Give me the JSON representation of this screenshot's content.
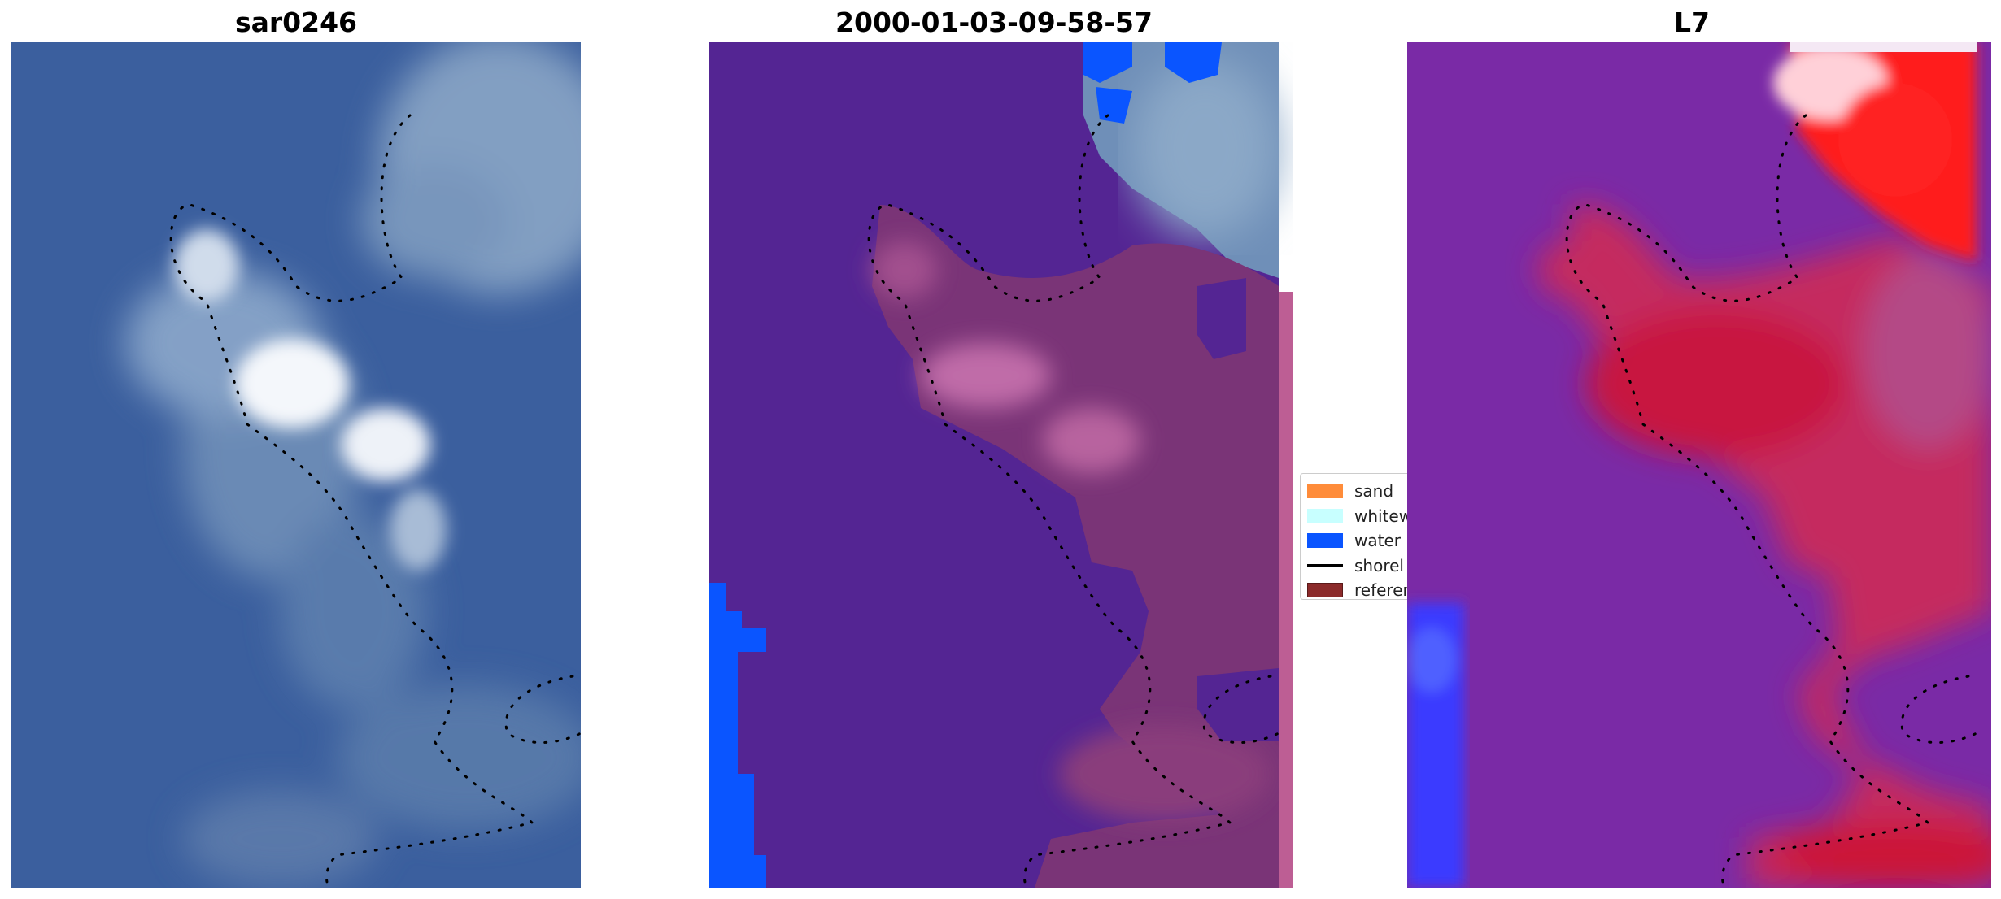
{
  "panels": [
    {
      "title": "sar0246"
    },
    {
      "title": "2000-01-03-09-58-57"
    },
    {
      "title": "L7"
    }
  ],
  "legend": {
    "items": [
      {
        "label": "sand",
        "type": "patch",
        "color": "#ff8c3a"
      },
      {
        "label": "whitew",
        "type": "patch",
        "color": "#c8ffff"
      },
      {
        "label": "water",
        "type": "patch",
        "color": "#0a55ff"
      },
      {
        "label": "shorel",
        "type": "line",
        "color": "#000000"
      },
      {
        "label": "referer",
        "type": "patch",
        "color": "#8b2a2a"
      }
    ]
  },
  "colors": {
    "rgb_water": "#3b5f9e",
    "classified_background": "#542593",
    "water_class": "#0a55ff",
    "mndwi_purple": "#7a2aa6",
    "mndwi_red": "#c8102e"
  }
}
